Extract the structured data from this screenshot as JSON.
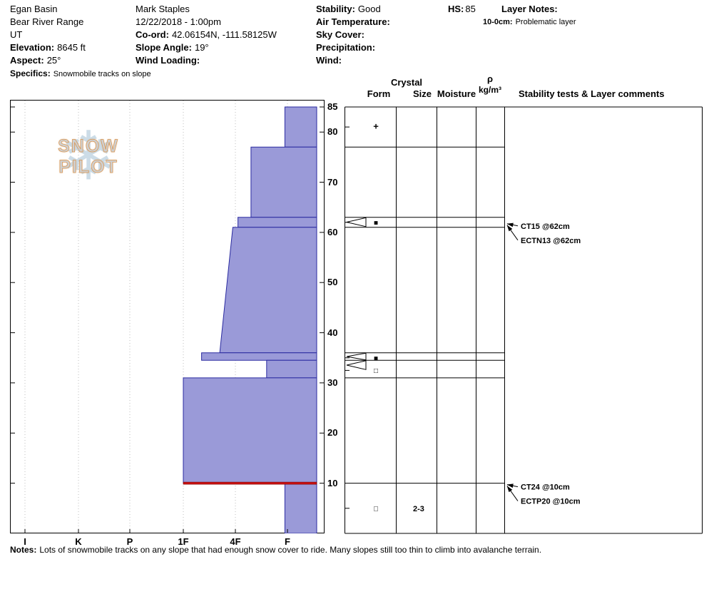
{
  "colors": {
    "layer_fill": "#9a9ad8",
    "layer_stroke": "#2a2aa0",
    "red_layer": "#cc1111",
    "snowflake": "#b7cede",
    "logo_text": "#cfcfcf",
    "logo_outline": "#d99550"
  },
  "logo": {
    "text": "SNOW PILOT",
    "snowflake_glyph": "❄"
  },
  "header": {
    "location": {
      "line1": "Egan Basin",
      "line2": "Bear River Range",
      "line3": "UT"
    },
    "elevation": {
      "label": "Elevation:",
      "value": "8645 ft"
    },
    "aspect": {
      "label": "Aspect:",
      "value": "25°"
    },
    "specifics": {
      "label": "Specifics:",
      "value": "Snowmobile tracks on slope"
    },
    "observer": {
      "name": "Mark Staples",
      "datetime": "12/22/2018 - 1:00pm"
    },
    "coord": {
      "label": "Co-ord:",
      "value": "42.06154N, -111.58125W"
    },
    "slope_angle": {
      "label": "Slope Angle:",
      "value": "19°"
    },
    "wind_loading": {
      "label": "Wind Loading:",
      "value": ""
    },
    "stability": {
      "label": "Stability:",
      "value": "Good"
    },
    "air_temperature": {
      "label": "Air Temperature:",
      "value": ""
    },
    "sky_cover": {
      "label": "Sky Cover:",
      "value": ""
    },
    "precipitation": {
      "label": "Precipitation:",
      "value": ""
    },
    "wind": {
      "label": "Wind:",
      "value": ""
    },
    "hs": {
      "label": "HS:",
      "value": "85"
    },
    "layer_notes": {
      "label": "Layer Notes:",
      "entry_depth": "10-0cm:",
      "entry_text": "Problematic layer"
    }
  },
  "panel_headers": {
    "crystal": "Crystal",
    "form": "Form",
    "size": "Size",
    "moisture": "Moisture",
    "rho": "ρ",
    "rho_unit": "kg/m³",
    "stability_tests": "Stability tests & Layer comments"
  },
  "notes": {
    "label": "Notes:",
    "text": "Lots of snowmobile tracks on any slope that had enough snow cover to ride. Many slopes still too thin to climb into avalanche terrain."
  },
  "chart_data": {
    "type": "snow-profile",
    "hs_cm": 85,
    "depth_unit": "cm",
    "y_ticks": [
      10,
      20,
      30,
      40,
      50,
      60,
      70,
      80,
      85
    ],
    "hardness_categories": [
      "I",
      "K",
      "P",
      "1F",
      "4F",
      "F"
    ],
    "layers": [
      {
        "top_cm": 85,
        "bottom_cm": 77,
        "hardness": "F",
        "h_top": 4.95,
        "h_bot": 4.95
      },
      {
        "top_cm": 77,
        "bottom_cm": 63,
        "hardness": "4F-F",
        "h_top": 4.3,
        "h_bot": 4.3
      },
      {
        "top_cm": 63,
        "bottom_cm": 61,
        "hardness": "4F",
        "h_top": 4.05,
        "h_bot": 4.05,
        "flagged": true
      },
      {
        "top_cm": 61,
        "bottom_cm": 36,
        "hardness": "4F to 4F+",
        "h_top": 3.95,
        "h_bot": 3.7
      },
      {
        "top_cm": 36,
        "bottom_cm": 34.5,
        "hardness": "1F-4F",
        "h_top": 3.35,
        "h_bot": 3.35,
        "flagged": true
      },
      {
        "top_cm": 34.5,
        "bottom_cm": 31,
        "hardness": "4F-F",
        "h_top": 4.6,
        "h_bot": 4.6,
        "flagged": true
      },
      {
        "top_cm": 31,
        "bottom_cm": 10,
        "hardness": "1F",
        "h_top": 3.0,
        "h_bot": 3.0
      },
      {
        "top_cm": 10,
        "bottom_cm": 0,
        "hardness": "F",
        "h_top": 4.95,
        "h_bot": 4.95
      }
    ],
    "red_layer_line": {
      "depth_cm": 10,
      "h_from": 3.0
    },
    "grain_form_symbols": [
      {
        "depth_cm": 81,
        "symbol": "+"
      },
      {
        "depth_cm": 62,
        "symbol": "■"
      },
      {
        "depth_cm": 35,
        "symbol": "■"
      },
      {
        "depth_cm": 32.5,
        "symbol": "□"
      },
      {
        "depth_cm": 5,
        "symbol": "□"
      }
    ],
    "grain_size_labels": [
      {
        "depth_cm": 5,
        "text": "2-3"
      }
    ],
    "stability_tests": [
      {
        "label": "CT15 @62cm",
        "target_depth_cm": 62
      },
      {
        "label": "ECTN13 @62cm",
        "target_depth_cm": 62
      },
      {
        "label": "CT24 @10cm",
        "target_depth_cm": 10
      },
      {
        "label": "ECTP20 @10cm",
        "target_depth_cm": 10
      }
    ]
  }
}
